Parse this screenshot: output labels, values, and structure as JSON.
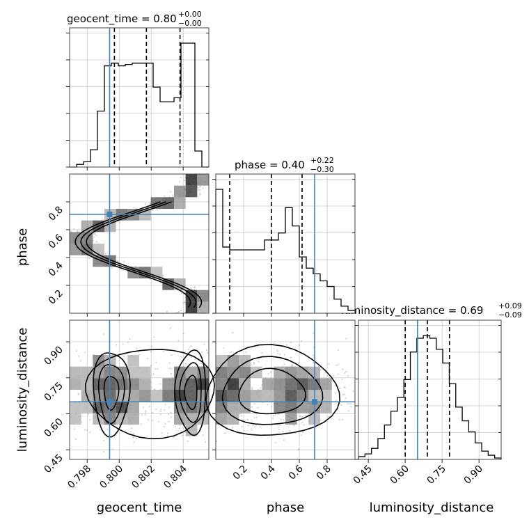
{
  "chart_data": {
    "type": "corner",
    "parameters": [
      "geocent_time",
      "phase",
      "luminosity_distance"
    ],
    "titles": [
      {
        "param": "geocent_time",
        "label": "geocent_time",
        "value": "0.80",
        "plus": "+0.00",
        "minus": "−0.00"
      },
      {
        "param": "phase",
        "label": "phase",
        "value": "0.40",
        "plus": "+0.22",
        "minus": "−0.30"
      },
      {
        "param": "luminosity_distance",
        "label": "luminosity_distance",
        "value": "0.69",
        "plus": "+0.09",
        "minus": "−0.09"
      }
    ],
    "axis_labels": {
      "x": [
        "geocent_time",
        "phase",
        "luminosity_distance"
      ],
      "y": [
        "phase",
        "luminosity_distance"
      ]
    },
    "ranges": {
      "geocent_time": [
        0.7969,
        0.8056
      ],
      "phase": [
        0.0,
        1.0
      ],
      "luminosity_distance": [
        0.41,
        0.99
      ]
    },
    "ticks": {
      "geocent_time": [
        0.798,
        0.8,
        0.802,
        0.804
      ],
      "geocent_time_labels": [
        "0.798",
        "0.800",
        "0.802",
        "0.804"
      ],
      "phase": [
        0.2,
        0.4,
        0.6,
        0.8
      ],
      "phase_labels": [
        "0.2",
        "0.4",
        "0.6",
        "0.8"
      ],
      "luminosity_distance": [
        0.45,
        0.6,
        0.75,
        0.9
      ],
      "luminosity_distance_labels": [
        "0.45",
        "0.60",
        "0.75",
        "0.90"
      ]
    },
    "truths": {
      "geocent_time": 0.7994,
      "phase": 0.71,
      "luminosity_distance": 0.65
    },
    "quantiles": {
      "geocent_time": [
        0.7997,
        0.8017,
        0.8038
      ],
      "phase": [
        0.1,
        0.4,
        0.62
      ],
      "luminosity_distance": [
        0.6,
        0.69,
        0.78
      ]
    },
    "histograms": {
      "geocent_time": [
        0,
        2,
        4,
        13,
        42,
        76,
        78,
        76,
        77,
        78,
        78,
        78,
        60,
        49,
        49,
        52,
        93,
        93,
        12,
        0
      ],
      "phase": [
        88,
        47,
        45,
        45,
        45,
        45,
        45,
        52,
        52,
        57,
        75,
        62,
        40,
        32,
        28,
        23,
        19,
        10,
        5,
        2
      ],
      "luminosity_distance": [
        2,
        4,
        8,
        15,
        25,
        35,
        45,
        58,
        78,
        88,
        90,
        88,
        80,
        70,
        55,
        38,
        28,
        20,
        12,
        6,
        3,
        1
      ]
    },
    "truth_color": "#4682b4",
    "contour_color": "#000000",
    "grid": true
  }
}
